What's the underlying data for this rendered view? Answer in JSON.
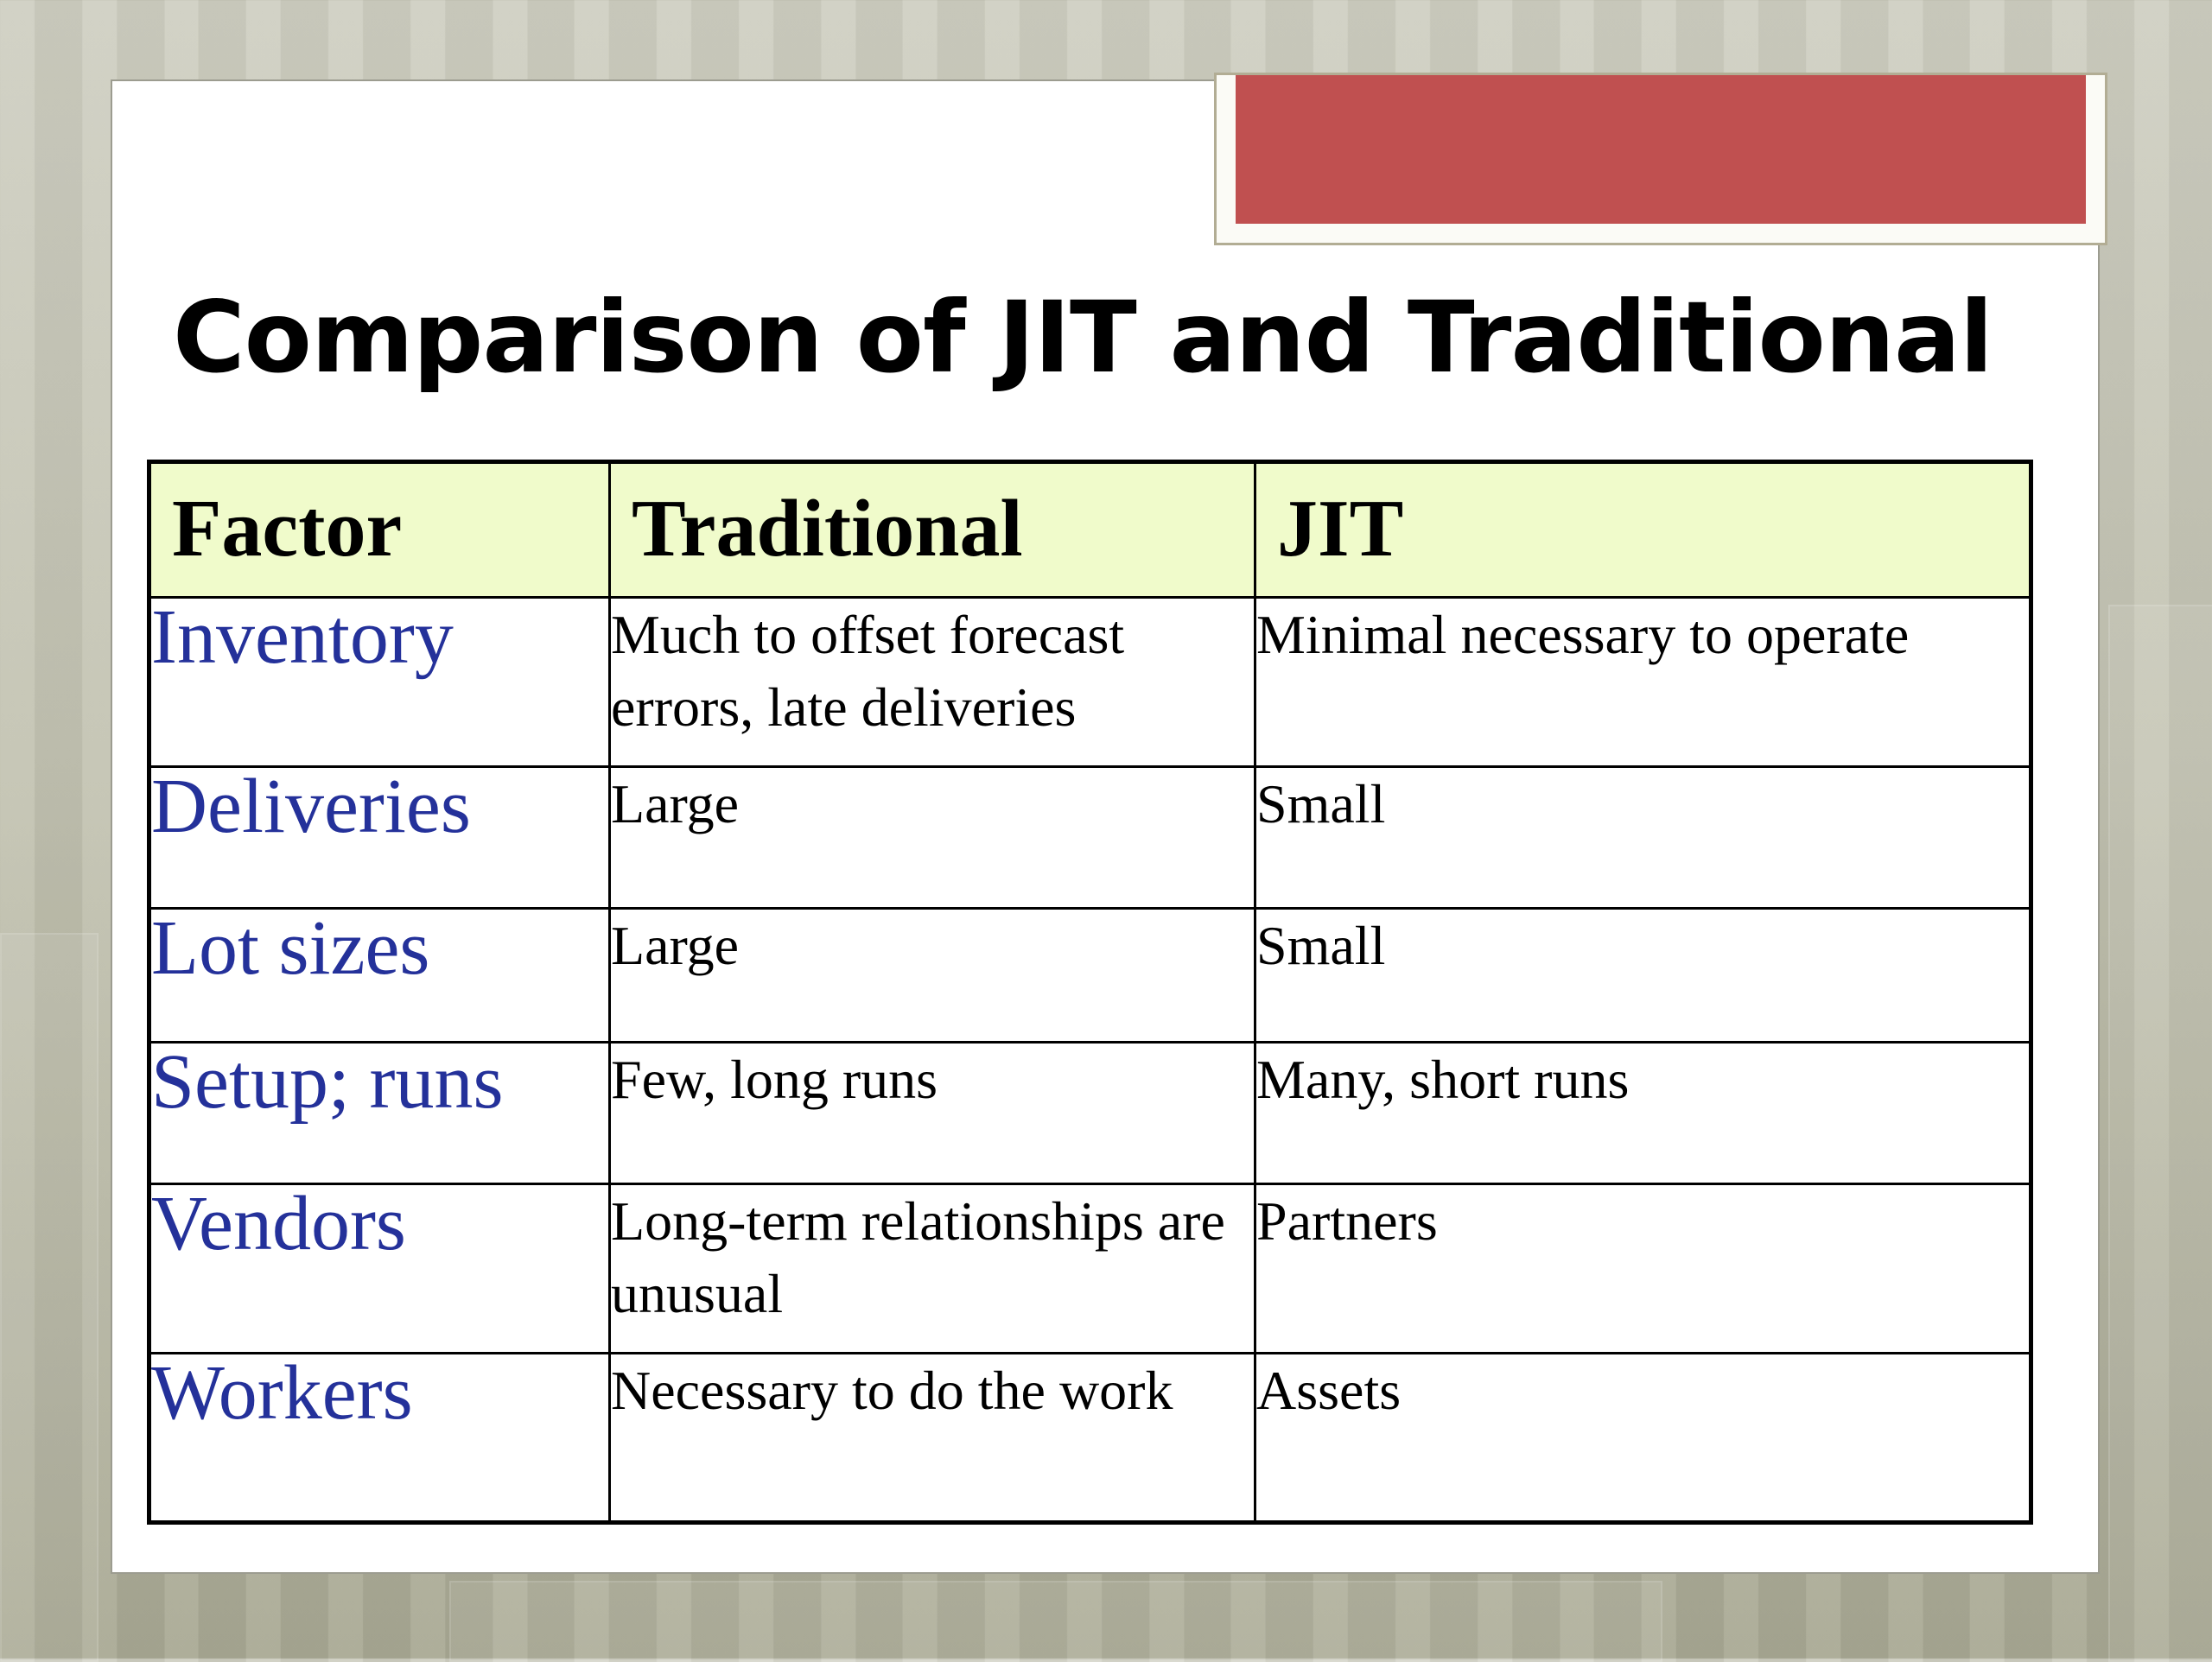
{
  "slide": {
    "title": "Comparison of JIT and Traditional"
  },
  "colors": {
    "accent": "#c05050",
    "header_bg": "#f0fbcb",
    "factor_text": "#24319a"
  },
  "table": {
    "headers": [
      "Factor",
      "Traditional",
      "JIT"
    ],
    "rows": [
      {
        "factor": "Inventory",
        "traditional": "Much to offset forecast errors, late deliveries",
        "jit": "Minimal necessary to operate"
      },
      {
        "factor": "Deliveries",
        "traditional": "Large",
        "jit": "Small"
      },
      {
        "factor": "Lot sizes",
        "traditional": "Large",
        "jit": "Small"
      },
      {
        "factor": "Setup; runs",
        "traditional": "Few, long runs",
        "jit": "Many, short runs"
      },
      {
        "factor": "Vendors",
        "traditional": "Long-term relationships are unusual",
        "jit": "Partners"
      },
      {
        "factor": "Workers",
        "traditional": "Necessary to do the work",
        "jit": "Assets"
      }
    ]
  }
}
